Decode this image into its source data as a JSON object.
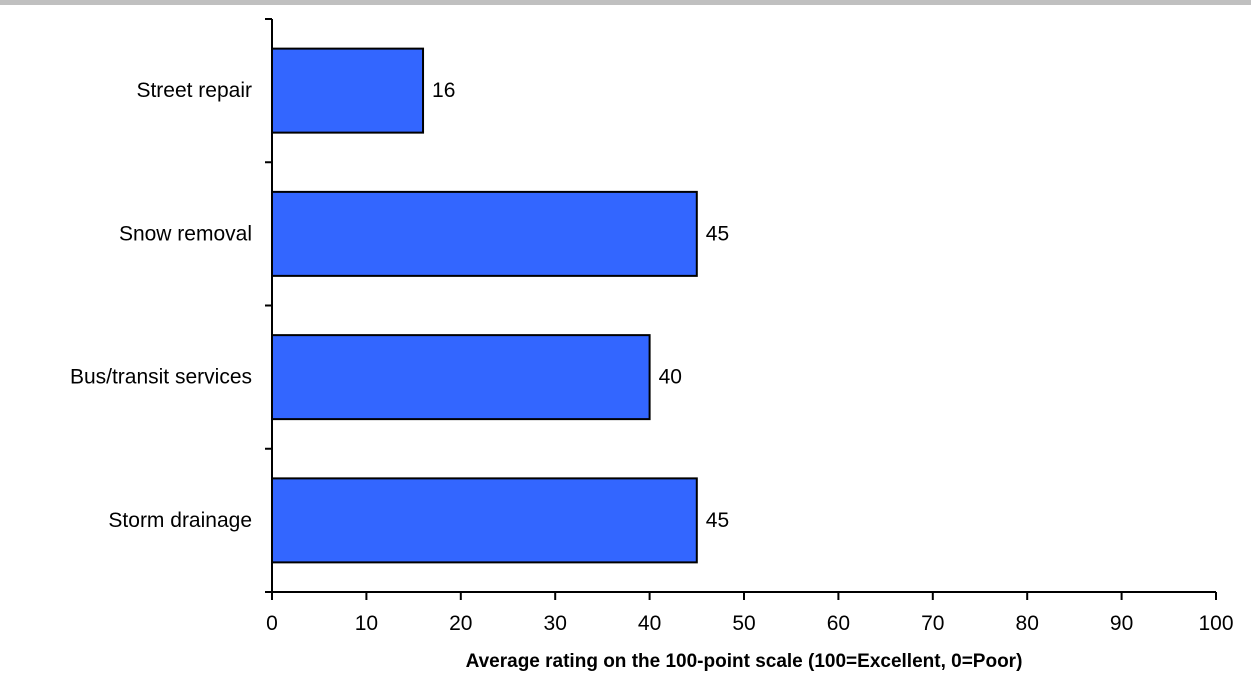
{
  "chart_data": {
    "type": "bar",
    "orientation": "horizontal",
    "title": "",
    "categories": [
      "Street repair",
      "Snow removal",
      "Bus/transit services",
      "Storm drainage"
    ],
    "values": [
      16,
      45,
      40,
      45
    ],
    "data_labels": [
      "16",
      "45",
      "40",
      "45"
    ],
    "xlabel": "Average rating on the 100-point scale (100=Excellent, 0=Poor)",
    "ylabel": "",
    "xlim": [
      0,
      100
    ],
    "x_ticks": [
      0,
      10,
      20,
      30,
      40,
      50,
      60,
      70,
      80,
      90,
      100
    ],
    "grid": false,
    "legend": "none",
    "colors": {
      "bar_fill": "#3366ff",
      "bar_stroke": "#000000",
      "axis": "#000000",
      "top_rule": "#c0c0c0"
    }
  }
}
